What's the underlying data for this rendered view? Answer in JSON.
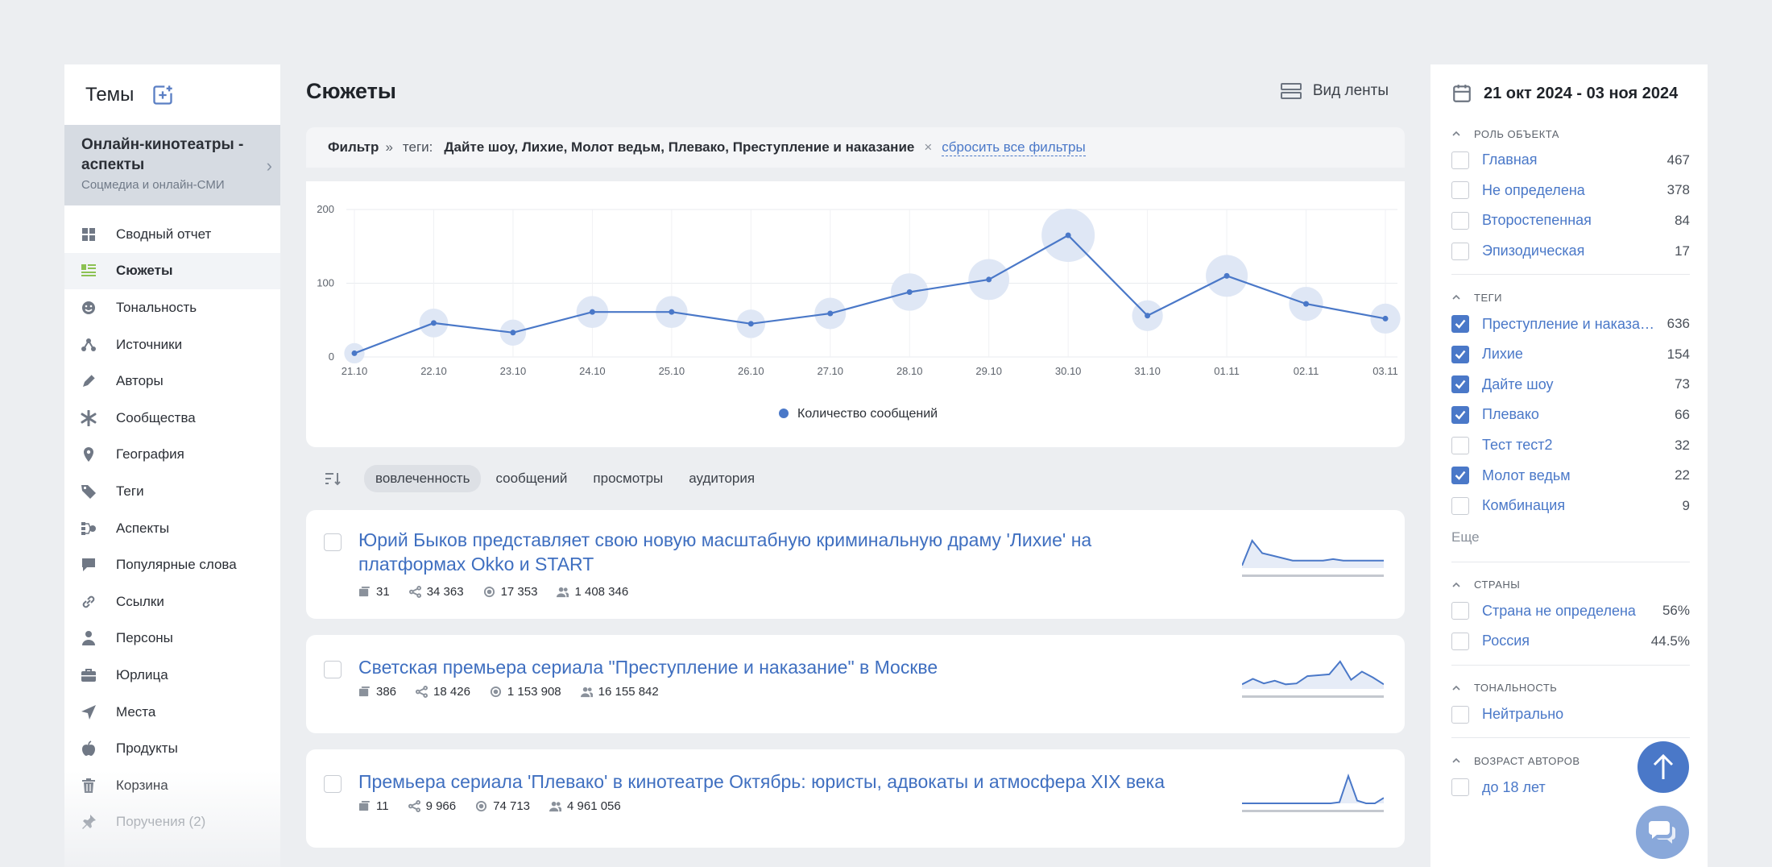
{
  "sidebar": {
    "title": "Темы",
    "topic": {
      "name": "Онлайн-кинотеатры - аспекты",
      "subtitle": "Соцмедиа и онлайн-СМИ"
    },
    "items": [
      {
        "label": "Сводный отчет",
        "icon": "grid-icon"
      },
      {
        "label": "Сюжеты",
        "icon": "stories-icon",
        "active": true
      },
      {
        "label": "Тональность",
        "icon": "smile-icon"
      },
      {
        "label": "Источники",
        "icon": "sources-icon"
      },
      {
        "label": "Авторы",
        "icon": "pen-icon"
      },
      {
        "label": "Сообщества",
        "icon": "asterisk-icon"
      },
      {
        "label": "География",
        "icon": "pin-icon"
      },
      {
        "label": "Теги",
        "icon": "tag-icon"
      },
      {
        "label": "Аспекты",
        "icon": "aspects-icon"
      },
      {
        "label": "Популярные слова",
        "icon": "comment-icon"
      },
      {
        "label": "Ссылки",
        "icon": "link-icon"
      },
      {
        "label": "Персоны",
        "icon": "person-icon"
      },
      {
        "label": "Юрлица",
        "icon": "briefcase-icon"
      },
      {
        "label": "Места",
        "icon": "navigation-icon"
      },
      {
        "label": "Продукты",
        "icon": "apple-icon"
      },
      {
        "label": "Корзина",
        "icon": "trash-icon"
      },
      {
        "label": "Поручения (2)",
        "icon": "pushpin-icon"
      }
    ]
  },
  "main": {
    "title": "Сюжеты",
    "view_label": "Вид ленты",
    "filter": {
      "label": "Фильтр",
      "separator": "»",
      "tags_label": "теги:",
      "tags_value": "Дайте шоу, Лихие, Молот ведьм, Плевако, Преступление и наказание",
      "clear": "×",
      "reset_label": "сбросить все фильтры"
    },
    "sort": {
      "options": [
        "вовлеченность",
        "сообщений",
        "просмотры",
        "аудитория"
      ],
      "active": 0
    },
    "stories": [
      {
        "title": "Юрий Быков представляет свою новую масштабную криминальную драму 'Лихие' на платформах Okko и START",
        "messages": "31",
        "reposts": "34 363",
        "views": "17 353",
        "audience": "1 408 346",
        "spark": [
          5,
          55,
          30,
          25,
          20,
          15,
          15,
          15,
          15,
          18,
          15,
          15,
          15,
          15,
          15
        ]
      },
      {
        "title": "Светская премьера сериала \"Преступление и наказание\" в Москве",
        "messages": "386",
        "reposts": "18 426",
        "views": "1 153 908",
        "audience": "16 155 842",
        "spark": [
          10,
          22,
          12,
          18,
          10,
          12,
          28,
          30,
          32,
          60,
          20,
          38,
          25,
          10
        ]
      },
      {
        "title": "Премьера сериала 'Плевако' в кинотеатре Октябрь: юристы, адвокаты и атмосфера XIX века",
        "messages": "11",
        "reposts": "9 966",
        "views": "74 713",
        "audience": "4 961 056",
        "spark": [
          0,
          0,
          0,
          0,
          0,
          0,
          0,
          0,
          0,
          0,
          0,
          2,
          50,
          5,
          0,
          0,
          10
        ]
      }
    ]
  },
  "chart_data": {
    "type": "line",
    "categories": [
      "21.10",
      "22.10",
      "23.10",
      "24.10",
      "25.10",
      "26.10",
      "27.10",
      "28.10",
      "29.10",
      "30.10",
      "31.10",
      "01.11",
      "02.11",
      "03.11"
    ],
    "series": [
      {
        "name": "Количество сообщений",
        "values": [
          5,
          46,
          33,
          61,
          61,
          45,
          59,
          88,
          105,
          165,
          56,
          110,
          72,
          52
        ]
      }
    ],
    "ylim": [
      0,
      200
    ],
    "yticks": [
      0,
      100,
      200
    ],
    "grid": true,
    "legend": "bottom-center",
    "color": "#4a78c8"
  },
  "right": {
    "date_range": "21 окт 2024 - 03 ноя 2024",
    "sections": [
      {
        "title": "Роль объекта",
        "options": [
          {
            "label": "Главная",
            "count": "467",
            "checked": false
          },
          {
            "label": "Не определена",
            "count": "378",
            "checked": false
          },
          {
            "label": "Второстепенная",
            "count": "84",
            "checked": false
          },
          {
            "label": "Эпизодическая",
            "count": "17",
            "checked": false
          }
        ]
      },
      {
        "title": "Теги",
        "options": [
          {
            "label": "Преступление и наказание",
            "count": "636",
            "checked": true
          },
          {
            "label": "Лихие",
            "count": "154",
            "checked": true
          },
          {
            "label": "Дайте шоу",
            "count": "73",
            "checked": true
          },
          {
            "label": "Плевако",
            "count": "66",
            "checked": true
          },
          {
            "label": "Тест тест2",
            "count": "32",
            "checked": false
          },
          {
            "label": "Молот ведьм",
            "count": "22",
            "checked": true
          },
          {
            "label": "Комбинация",
            "count": "9",
            "checked": false
          }
        ],
        "more": "Еще"
      },
      {
        "title": "Страны",
        "options": [
          {
            "label": "Страна не определена",
            "count": "56%",
            "checked": false
          },
          {
            "label": "Россия",
            "count": "44.5%",
            "checked": false
          }
        ]
      },
      {
        "title": "Тональность",
        "options": [
          {
            "label": "Нейтрально",
            "count": "",
            "checked": false
          }
        ]
      },
      {
        "title": "Возраст авторов",
        "options": [
          {
            "label": "до 18 лет",
            "count": "",
            "checked": false
          }
        ]
      }
    ]
  }
}
